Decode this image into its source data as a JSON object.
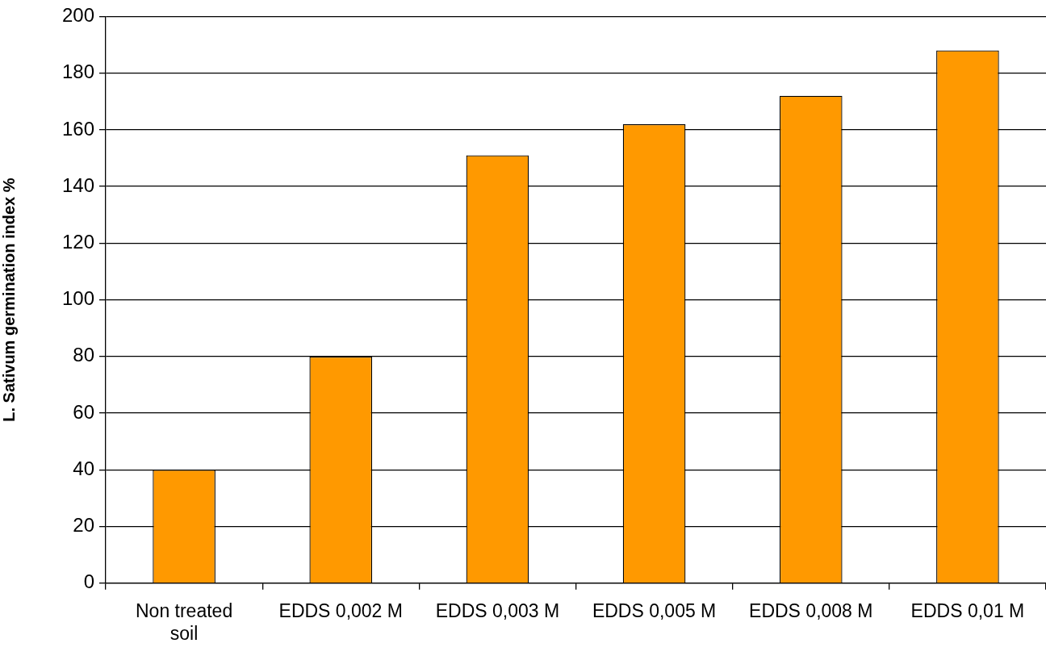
{
  "chart_data": {
    "type": "bar",
    "ylabel": "L. Sativum germination index %",
    "categories": [
      "Non treated soil",
      "EDDS 0,002 M",
      "EDDS 0,003 M",
      "EDDS 0,005 M",
      "EDDS 0,008 M",
      "EDDS 0,01 M"
    ],
    "values": [
      40,
      80,
      151,
      162,
      172,
      188
    ],
    "color": "#ff9900",
    "ylim": [
      0,
      200
    ],
    "yticks": [
      0,
      20,
      40,
      60,
      80,
      100,
      120,
      140,
      160,
      180,
      200
    ],
    "grid": "y"
  }
}
